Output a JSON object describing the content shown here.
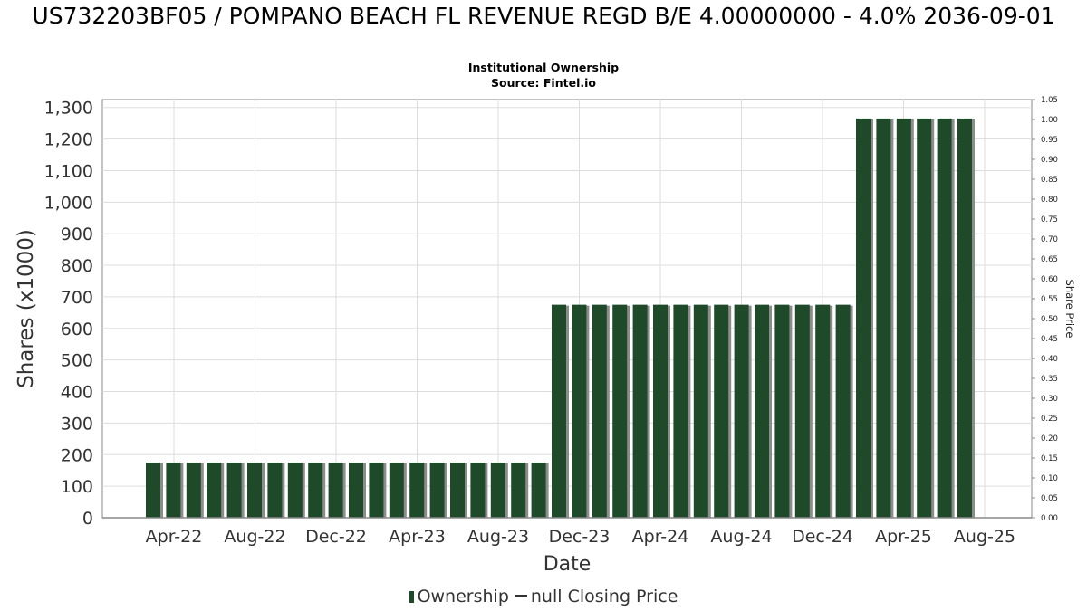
{
  "title": "US732203BF05 / POMPANO BEACH FL REVENUE REGD B/E 4.00000000 - 4.0% 2036-09-01",
  "subtitle": "Institutional Ownership",
  "source": "Source: Fintel.io",
  "legend": {
    "ownership_label": "Ownership",
    "price_label": "null Closing Price"
  },
  "colors": {
    "bar": "#1e4a2a",
    "bar_shadow": "#8c8c8c",
    "grid": "#dddddd"
  },
  "chart_data": {
    "type": "bar",
    "xlabel": "Date",
    "ylabel": "Shares (x1000)",
    "y2label": "Share Price",
    "ylim": [
      0,
      1325
    ],
    "y2lim": [
      0,
      1.05
    ],
    "yticks": [
      0,
      100,
      200,
      300,
      400,
      500,
      600,
      700,
      800,
      900,
      1000,
      1100,
      1200,
      1300
    ],
    "yticklabels": [
      "0",
      "100",
      "200",
      "300",
      "400",
      "500",
      "600",
      "700",
      "800",
      "900",
      "1,000",
      "1,100",
      "1,200",
      "1,300"
    ],
    "y2ticks": [
      "0.00",
      "0.05",
      "0.10",
      "0.15",
      "0.20",
      "0.25",
      "0.30",
      "0.35",
      "0.40",
      "0.45",
      "0.50",
      "0.55",
      "0.60",
      "0.65",
      "0.70",
      "0.75",
      "0.80",
      "0.85",
      "0.90",
      "0.95",
      "1.00",
      "1.05"
    ],
    "xticklabels": [
      "Apr-22",
      "Aug-22",
      "Dec-22",
      "Apr-23",
      "Aug-23",
      "Dec-23",
      "Apr-24",
      "Aug-24",
      "Dec-24",
      "Apr-25",
      "Aug-25"
    ],
    "grid": true,
    "legend_position": "bottom",
    "series": [
      {
        "name": "Ownership",
        "values": [
          175,
          175,
          175,
          175,
          175,
          175,
          175,
          175,
          175,
          175,
          175,
          175,
          175,
          175,
          175,
          175,
          175,
          175,
          175,
          175,
          675,
          675,
          675,
          675,
          675,
          675,
          675,
          675,
          675,
          675,
          675,
          675,
          675,
          675,
          675,
          1265,
          1265,
          1265,
          1265,
          1265,
          1265
        ]
      }
    ]
  }
}
